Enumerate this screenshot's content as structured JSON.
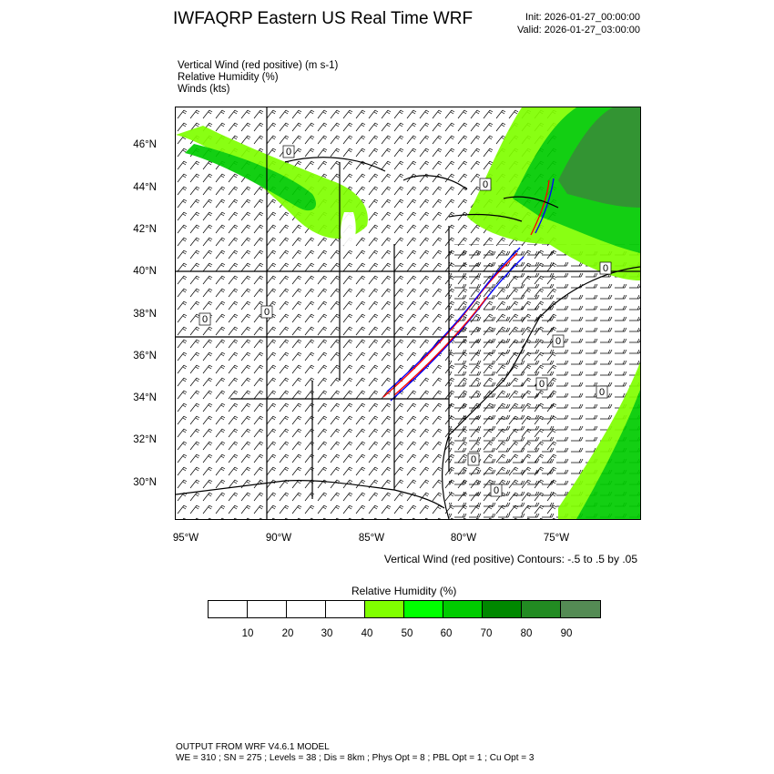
{
  "header": {
    "title": "IWFAQRP Eastern US Real Time WRF",
    "init": "Init: 2026-01-27_00:00:00",
    "valid": "Valid: 2026-01-27_03:00:00"
  },
  "fields": [
    "Vertical Wind (red positive)   (m s-1)",
    "Relative Humidity   (%)",
    "Winds   (kts)"
  ],
  "map": {
    "lat_labels": [
      "46°N",
      "44°N",
      "42°N",
      "40°N",
      "38°N",
      "36°N",
      "34°N",
      "32°N",
      "30°N"
    ],
    "lon_labels": [
      "95°W",
      "90°W",
      "85°W",
      "80°W",
      "75°W"
    ],
    "contour_zero_label": "0",
    "colors": {
      "humidity_40": "#80ff00",
      "humidity_50": "#00ff00",
      "humidity_60": "#00cc00",
      "humidity_70": "#008800",
      "humidity_80": "#228b22",
      "humidity_90": "#548b54",
      "vertical_wind_positive": "#ff0000",
      "vertical_wind_negative": "#0000ff",
      "wind_barb": "#000000"
    }
  },
  "contour_note": "Vertical Wind (red positive) Contours: -.5 to .5 by .05",
  "colorbar": {
    "title": "Relative Humidity   (%)",
    "labels": [
      "10",
      "20",
      "30",
      "40",
      "50",
      "60",
      "70",
      "80",
      "90"
    ],
    "colors": [
      "#ffffff",
      "#ffffff",
      "#ffffff",
      "#ffffff",
      "#80ff00",
      "#00ff00",
      "#00cc00",
      "#008800",
      "#228b22",
      "#548b54"
    ]
  },
  "footer": {
    "line1": "OUTPUT FROM WRF V4.6.1 MODEL",
    "line2": "WE = 310 ; SN = 275 ; Levels = 38 ; Dis = 8km ; Phys Opt = 8 ; PBL Opt = 1 ; Cu Opt = 3"
  }
}
